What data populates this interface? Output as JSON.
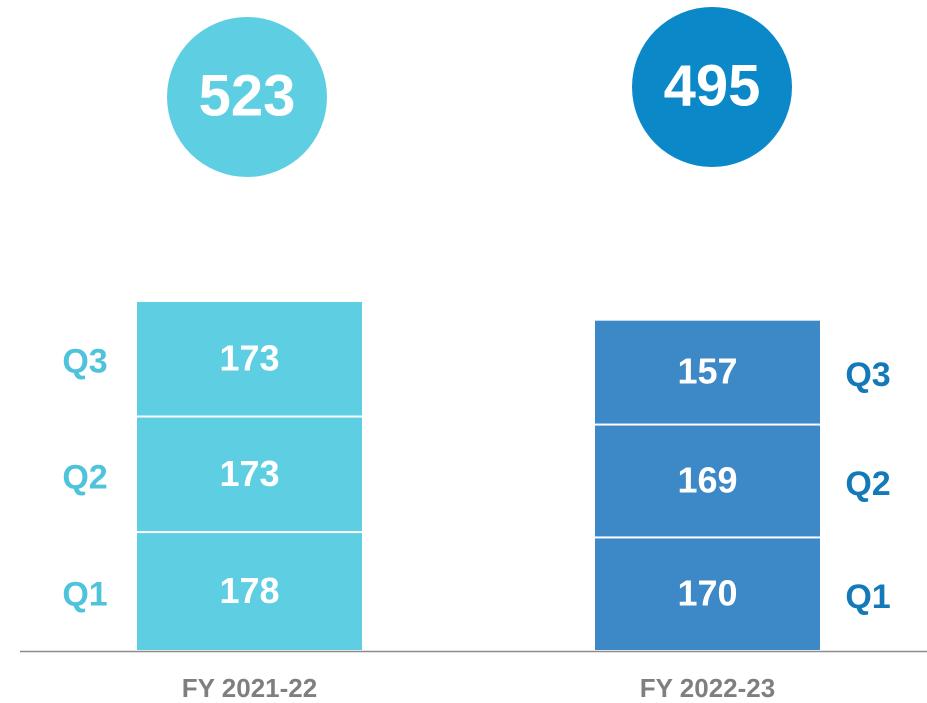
{
  "chart_data": {
    "type": "stacked-bar",
    "categories": [
      "FY 2021-22",
      "FY 2022-23"
    ],
    "series": [
      {
        "name": "Q1",
        "values": [
          178,
          170
        ]
      },
      {
        "name": "Q2",
        "values": [
          173,
          169
        ]
      },
      {
        "name": "Q3",
        "values": [
          173,
          157
        ]
      }
    ],
    "totals": [
      523,
      495
    ],
    "category_colors": [
      "#5ecfe3",
      "#3d88c6"
    ],
    "total_colors": [
      "#5ecfe3",
      "#0a88c8"
    ],
    "label_colors": [
      "#4fc3dc",
      "#1479b9"
    ]
  }
}
